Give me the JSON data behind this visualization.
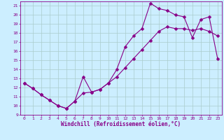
{
  "xlabel": "Windchill (Refroidissement éolien,°C)",
  "bg_color": "#cceeff",
  "line_color": "#880088",
  "grid_color": "#aacccc",
  "xlim": [
    -0.5,
    23.5
  ],
  "ylim": [
    9,
    21.5
  ],
  "xticks": [
    0,
    1,
    2,
    3,
    4,
    5,
    6,
    7,
    8,
    9,
    10,
    11,
    12,
    13,
    14,
    15,
    16,
    17,
    18,
    19,
    20,
    21,
    22,
    23
  ],
  "yticks": [
    9,
    10,
    11,
    12,
    13,
    14,
    15,
    16,
    17,
    18,
    19,
    20,
    21
  ],
  "line1_x": [
    0,
    1,
    2,
    3,
    4,
    5,
    6,
    7,
    8,
    9,
    10,
    11,
    12,
    13,
    14,
    15,
    16,
    17,
    18,
    19,
    20,
    21,
    22,
    23
  ],
  "line1_y": [
    12.5,
    11.9,
    11.2,
    10.6,
    10.0,
    9.7,
    10.5,
    11.4,
    11.5,
    11.8,
    12.5,
    13.2,
    14.2,
    15.2,
    16.2,
    17.2,
    18.2,
    18.7,
    18.5,
    18.5,
    18.3,
    18.5,
    18.2,
    17.7
  ],
  "line2_x": [
    0,
    1,
    2,
    3,
    4,
    5,
    6,
    7,
    8,
    9,
    10,
    11,
    12,
    13,
    14,
    15,
    16,
    17,
    18,
    19,
    20,
    21,
    22,
    23
  ],
  "line2_y": [
    12.5,
    11.9,
    11.2,
    10.6,
    10.0,
    9.7,
    10.5,
    13.2,
    11.5,
    11.8,
    12.5,
    14.0,
    16.5,
    17.7,
    18.5,
    21.3,
    20.7,
    20.5,
    20.0,
    19.8,
    17.5,
    19.5,
    19.8,
    15.2
  ],
  "marker": "D",
  "markersize": 2.5,
  "linewidth": 0.8,
  "tick_fontsize": 4.5,
  "label_fontsize": 5.5
}
